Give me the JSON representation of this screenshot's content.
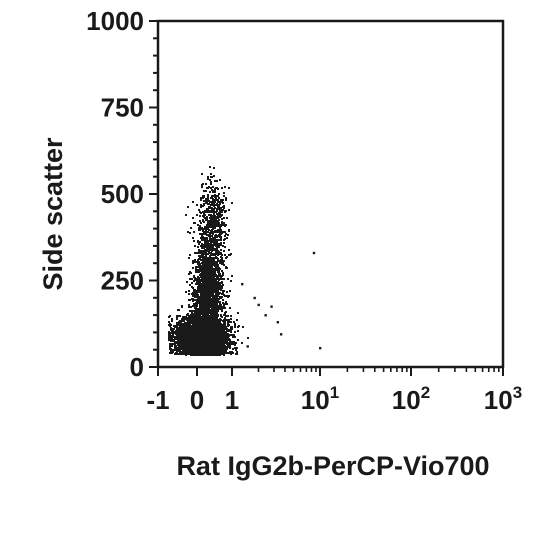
{
  "chart_data": {
    "type": "scatter",
    "title": "",
    "xlabel": "Rat IgG2b-PerCP-Vio700",
    "ylabel": "Side scatter",
    "x_scale": "biexponential",
    "xlim": [
      -1,
      1000
    ],
    "ylim": [
      0,
      1000
    ],
    "grid": false,
    "x_ticks": [
      {
        "value": -1,
        "label": "-1",
        "sup": ""
      },
      {
        "value": 0,
        "label": "0",
        "sup": ""
      },
      {
        "value": 1,
        "label": "1",
        "sup": ""
      },
      {
        "value": 10,
        "label": "10",
        "sup": "1"
      },
      {
        "value": 100,
        "label": "10",
        "sup": "2"
      },
      {
        "value": 1000,
        "label": "10",
        "sup": "3"
      }
    ],
    "y_ticks": [
      {
        "value": 0,
        "label": "0"
      },
      {
        "value": 250,
        "label": "250"
      },
      {
        "value": 500,
        "label": "500"
      },
      {
        "value": 750,
        "label": "750"
      },
      {
        "value": 1000,
        "label": "1000"
      }
    ],
    "point_color": "#1a1a1a",
    "populations": [
      {
        "x_center": 0.1,
        "x_spread": 0.35,
        "y_center": 90,
        "y_spread": 30,
        "count": 3800
      },
      {
        "x_center": 0.3,
        "x_spread": 0.22,
        "y_center": 220,
        "y_spread": 95,
        "count": 1900
      },
      {
        "x_center": 0.45,
        "x_spread": 0.18,
        "y_center": 430,
        "y_spread": 55,
        "count": 420
      }
    ],
    "outliers": [
      {
        "x": 1.8,
        "y": 200
      },
      {
        "x": 2.0,
        "y": 180
      },
      {
        "x": 2.4,
        "y": 150
      },
      {
        "x": 3.3,
        "y": 130
      },
      {
        "x": 3.6,
        "y": 95
      },
      {
        "x": 2.8,
        "y": 175
      },
      {
        "x": 8.5,
        "y": 330
      },
      {
        "x": 10,
        "y": 55
      },
      {
        "x": 1.3,
        "y": 240
      },
      {
        "x": 1.5,
        "y": 60
      }
    ]
  }
}
